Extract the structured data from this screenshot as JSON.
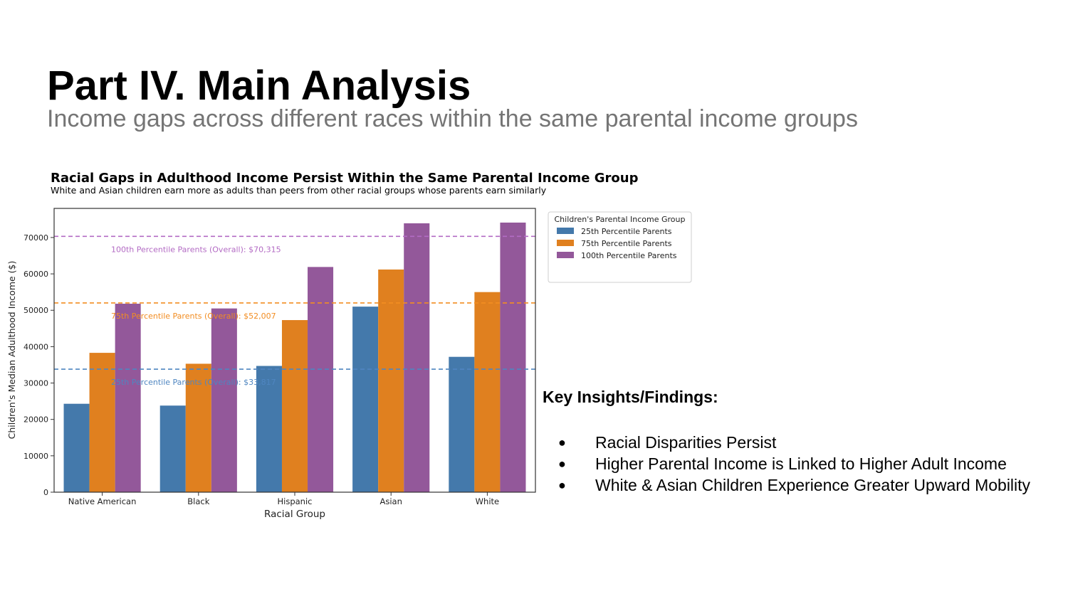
{
  "slide": {
    "title": "Part IV. Main Analysis",
    "subtitle": "Income gaps across different races within the same parental income groups"
  },
  "insights": {
    "heading": "Key Insights/Findings:",
    "bullet_glyph": "●",
    "items": [
      "Racial Disparities Persist",
      "Higher Parental Income is Linked to Higher Adult Income",
      "White & Asian Children Experience Greater Upward Mobility"
    ]
  },
  "chart_data": {
    "type": "bar",
    "title": "Racial Gaps in Adulthood Income Persist Within the Same Parental Income Group",
    "subtitle": "White and Asian children earn more as adults than peers from other racial groups whose parents earn similarly",
    "xlabel": "Racial Group",
    "ylabel": "Children's Median Adulthood Income ($)",
    "ylim": [
      0,
      78000
    ],
    "yticks": [
      0,
      10000,
      20000,
      30000,
      40000,
      50000,
      60000,
      70000
    ],
    "categories": [
      "Native American",
      "Black",
      "Hispanic",
      "Asian",
      "White"
    ],
    "series": [
      {
        "name": "25th Percentile Parents",
        "color": "#4479ab",
        "values": [
          24300,
          23800,
          34700,
          51000,
          37200
        ]
      },
      {
        "name": "75th Percentile Parents",
        "color": "#e0801f",
        "values": [
          38300,
          35300,
          47300,
          61200,
          55000
        ]
      },
      {
        "name": "100th Percentile Parents",
        "color": "#93589a",
        "values": [
          51800,
          50500,
          61900,
          73900,
          74100
        ]
      }
    ],
    "reference_lines": [
      {
        "label": "100th Percentile Parents (Overall): $70,315",
        "value": 70315,
        "color": "#b36bc4"
      },
      {
        "label": "75th Percentile Parents (Overall): $52,007",
        "value": 52007,
        "color": "#f28d22"
      },
      {
        "label": "25th Percentile Parents (Overall): $33,817",
        "value": 33817,
        "color": "#4f86c1"
      }
    ],
    "legend": {
      "title": "Children's Parental Income Group",
      "placement": "outside-top-right"
    },
    "grid": false
  }
}
